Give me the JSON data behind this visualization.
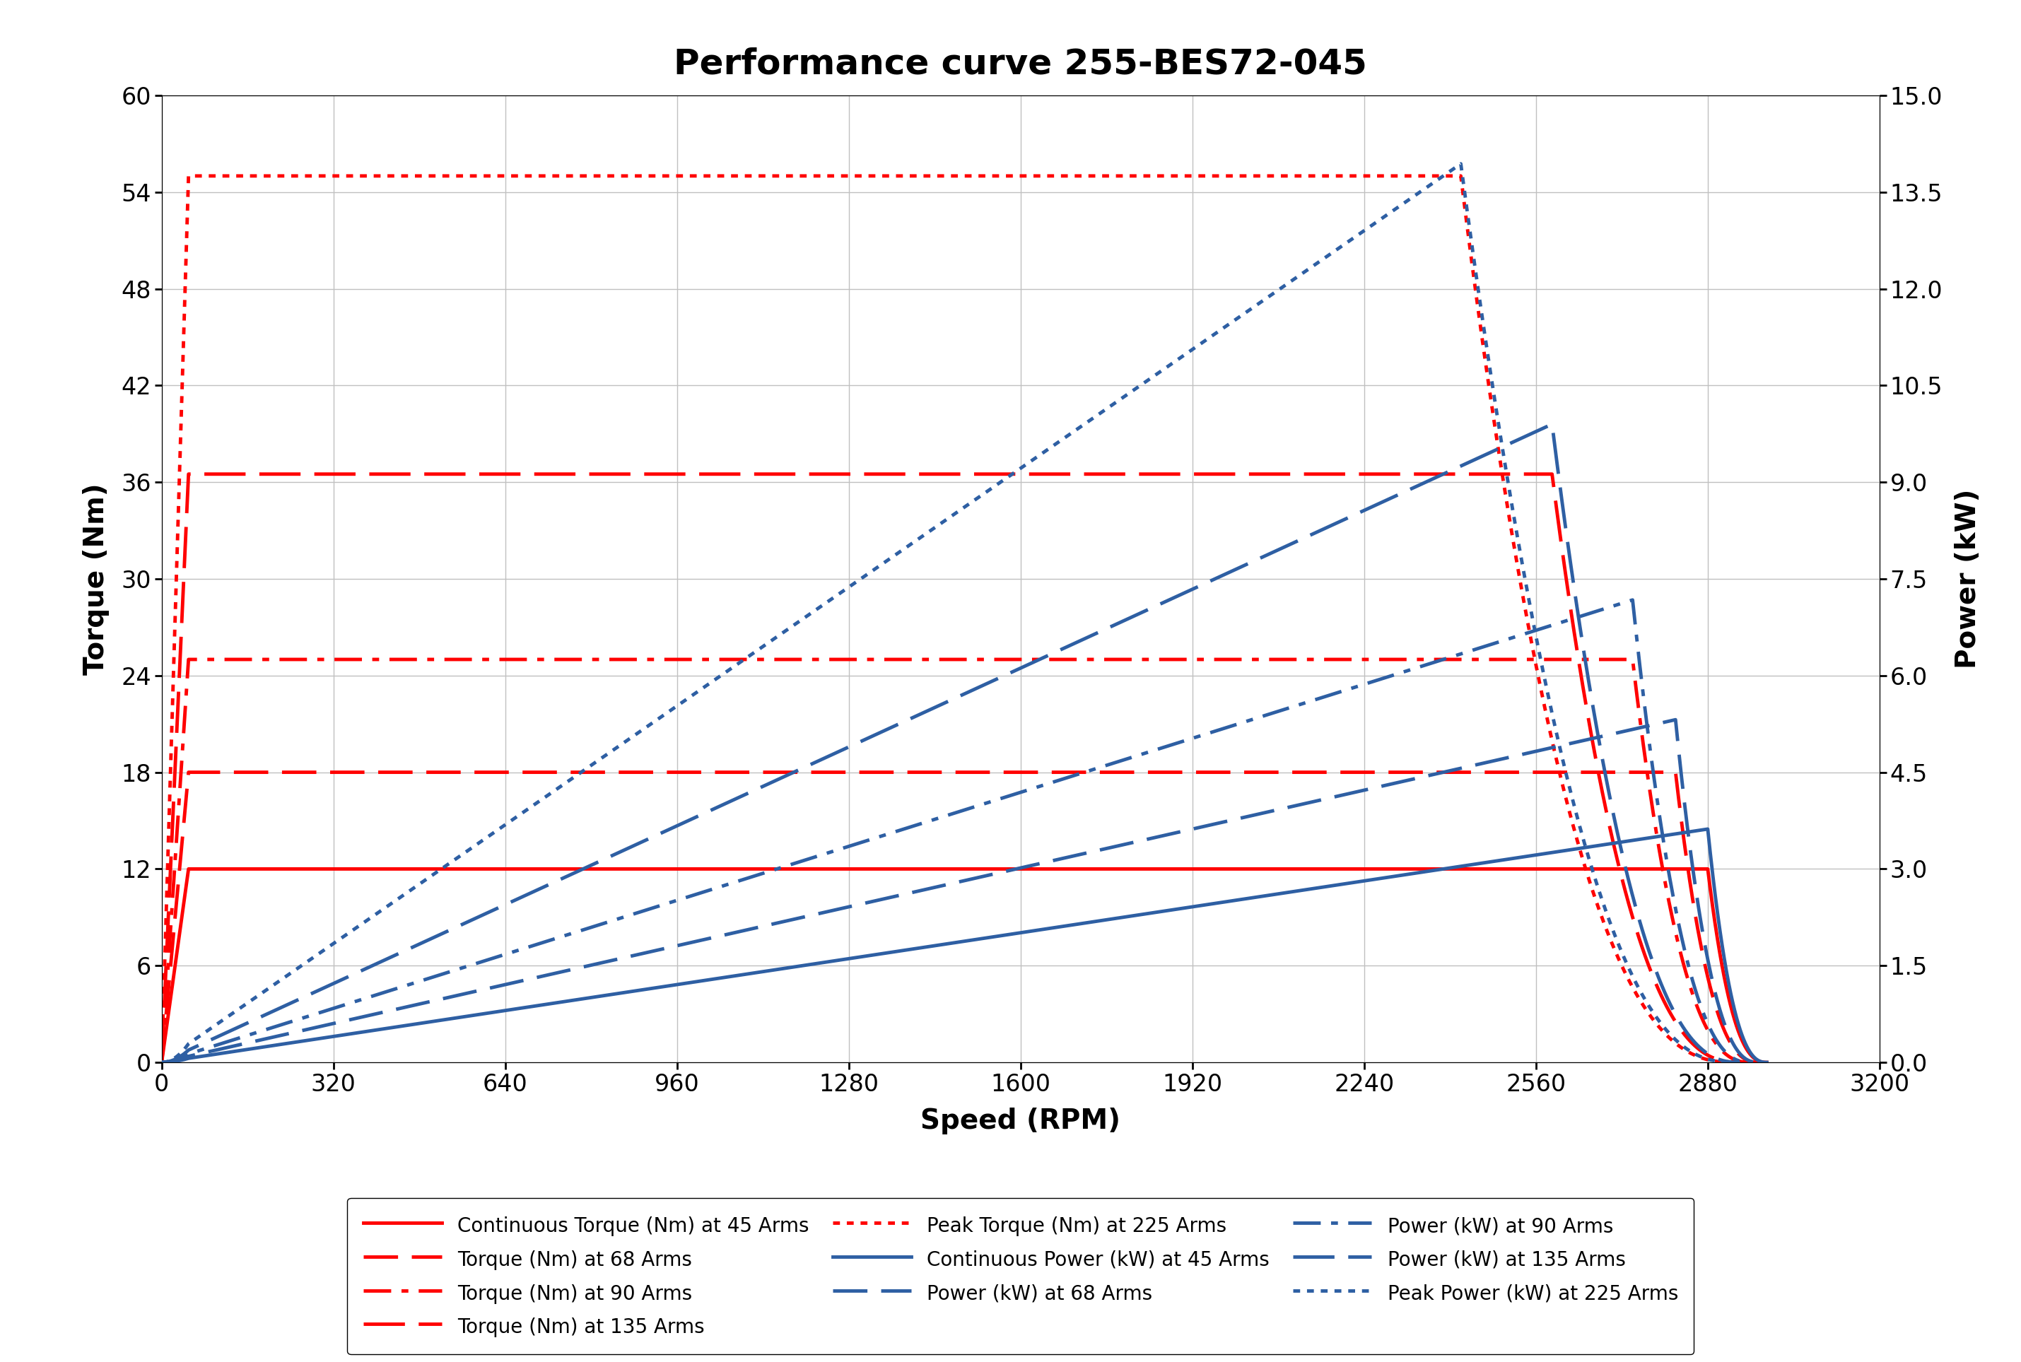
{
  "title": "Performance curve 255-BES72-045",
  "xlabel": "Speed (RPM)",
  "ylabel_left": "Torque (Nm)",
  "ylabel_right": "Power (kW)",
  "xlim": [
    0,
    3200
  ],
  "ylim_left": [
    0,
    60
  ],
  "ylim_right": [
    0,
    15
  ],
  "xticks": [
    0,
    320,
    640,
    960,
    1280,
    1600,
    1920,
    2240,
    2560,
    2880,
    3200
  ],
  "yticks_left": [
    0,
    6,
    12,
    18,
    24,
    30,
    36,
    42,
    48,
    54,
    60
  ],
  "yticks_right": [
    0,
    1.5,
    3.0,
    4.5,
    6.0,
    7.5,
    9.0,
    10.5,
    12.0,
    13.5,
    15.0
  ],
  "curves": [
    {
      "arm": "45",
      "flat_torque": 12.0,
      "base_speed": 2880,
      "max_speed": 2990,
      "torque_color": "#FF0000",
      "power_color": "#2E5FA3",
      "torque_ls": "solid",
      "power_ls": "solid",
      "torque_lw": 3.5,
      "power_lw": 3.5,
      "torque_label": "Continuous Torque (Nm) at 45 Arms",
      "power_label": "Continuous Power (kW) at 45 Arms"
    },
    {
      "arm": "68",
      "flat_torque": 18.0,
      "base_speed": 2820,
      "max_speed": 2975,
      "torque_color": "#FF0000",
      "power_color": "#2E5FA3",
      "torque_ls": "dashed",
      "power_ls": "dashed",
      "torque_lw": 3.5,
      "power_lw": 3.5,
      "torque_label": "Torque (Nm) at 68 Arms",
      "power_label": "Power (kW) at 68 Arms"
    },
    {
      "arm": "90",
      "flat_torque": 25.0,
      "base_speed": 2740,
      "max_speed": 2960,
      "torque_color": "#FF0000",
      "power_color": "#2E5FA3",
      "torque_ls": "dashdot",
      "power_ls": "dashdot",
      "torque_lw": 3.5,
      "power_lw": 3.5,
      "torque_label": "Torque (Nm) at 90 Arms",
      "power_label": "Power (kW) at 90 Arms"
    },
    {
      "arm": "135",
      "flat_torque": 36.5,
      "base_speed": 2590,
      "max_speed": 2940,
      "torque_color": "#FF0000",
      "power_color": "#2E5FA3",
      "torque_ls": "dashed",
      "power_ls": "dashed",
      "torque_lw": 3.5,
      "power_lw": 3.5,
      "torque_label": "Torque (Nm) at 135 Arms",
      "power_label": "Power (kW) at 135 Arms"
    },
    {
      "arm": "225",
      "flat_torque": 55.0,
      "base_speed": 2420,
      "max_speed": 2930,
      "torque_color": "#FF0000",
      "power_color": "#2E5FA3",
      "torque_ls": "dotted",
      "power_ls": "dotted",
      "torque_lw": 3.5,
      "power_lw": 3.5,
      "torque_label": "Peak Torque (Nm) at 225 Arms",
      "power_label": "Peak Power (kW) at 225 Arms"
    }
  ],
  "background_color": "#FFFFFF",
  "grid_color": "#C0C0C0",
  "title_fontsize": 36,
  "label_fontsize": 28,
  "tick_fontsize": 24,
  "legend_fontsize": 20
}
